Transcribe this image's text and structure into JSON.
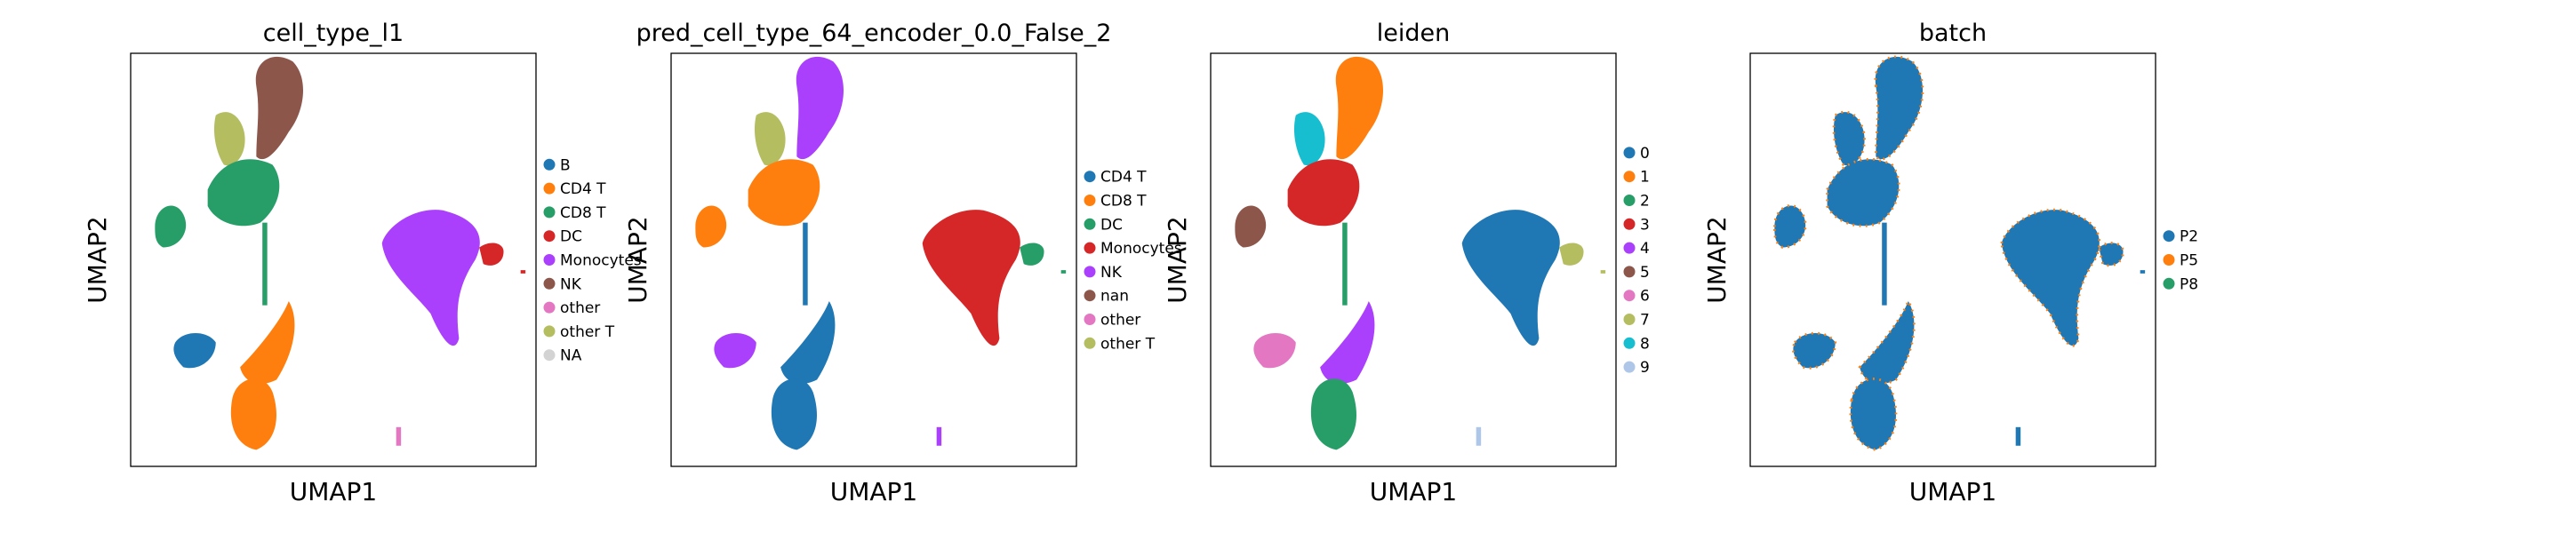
{
  "figure": {
    "panels": [
      {
        "title": "cell_type_l1",
        "xlabel": "UMAP1",
        "ylabel": "UMAP2",
        "legend": [
          {
            "label": "B",
            "color": "#1f77b4"
          },
          {
            "label": "CD4 T",
            "color": "#ff7f0e"
          },
          {
            "label": "CD8 T",
            "color": "#279e68"
          },
          {
            "label": "DC",
            "color": "#d62728"
          },
          {
            "label": "Monocytes",
            "color": "#aa40fc"
          },
          {
            "label": "NK",
            "color": "#8c564b"
          },
          {
            "label": "other",
            "color": "#e377c2"
          },
          {
            "label": "other T",
            "color": "#b5bd61"
          },
          {
            "label": "NA",
            "color": "#d3d3d3"
          }
        ]
      },
      {
        "title": "pred_cell_type_64_encoder_0.0_False_2",
        "xlabel": "UMAP1",
        "ylabel": "UMAP2",
        "legend": [
          {
            "label": "CD4 T",
            "color": "#1f77b4"
          },
          {
            "label": "CD8 T",
            "color": "#ff7f0e"
          },
          {
            "label": "DC",
            "color": "#279e68"
          },
          {
            "label": "Monocytes",
            "color": "#d62728"
          },
          {
            "label": "NK",
            "color": "#aa40fc"
          },
          {
            "label": "nan",
            "color": "#8c564b"
          },
          {
            "label": "other",
            "color": "#e377c2"
          },
          {
            "label": "other T",
            "color": "#b5bd61"
          }
        ]
      },
      {
        "title": "leiden",
        "xlabel": "UMAP1",
        "ylabel": "UMAP2",
        "legend": [
          {
            "label": "0",
            "color": "#1f77b4"
          },
          {
            "label": "1",
            "color": "#ff7f0e"
          },
          {
            "label": "2",
            "color": "#279e68"
          },
          {
            "label": "3",
            "color": "#d62728"
          },
          {
            "label": "4",
            "color": "#aa40fc"
          },
          {
            "label": "5",
            "color": "#8c564b"
          },
          {
            "label": "6",
            "color": "#e377c2"
          },
          {
            "label": "7",
            "color": "#b5bd61"
          },
          {
            "label": "8",
            "color": "#17becf"
          },
          {
            "label": "9",
            "color": "#aec7e8"
          }
        ]
      },
      {
        "title": "batch",
        "xlabel": "UMAP1",
        "ylabel": "UMAP2",
        "legend": [
          {
            "label": "P2",
            "color": "#1f77b4"
          },
          {
            "label": "P5",
            "color": "#ff7f0e"
          },
          {
            "label": "P8",
            "color": "#279e68"
          }
        ]
      }
    ]
  },
  "chart_data": [
    {
      "type": "scatter",
      "title": "cell_type_l1",
      "xlabel": "UMAP1",
      "ylabel": "UMAP2",
      "legend_position": "right",
      "grid": false,
      "series": [
        {
          "name": "B",
          "color": "#1f77b4",
          "region_colors": {
            "left_cluster": "#1f77b4"
          }
        },
        {
          "name": "CD4 T",
          "color": "#ff7f0e"
        },
        {
          "name": "CD8 T",
          "color": "#279e68"
        },
        {
          "name": "DC",
          "color": "#d62728"
        },
        {
          "name": "Monocytes",
          "color": "#aa40fc"
        },
        {
          "name": "NK",
          "color": "#8c564b"
        },
        {
          "name": "other",
          "color": "#e377c2"
        },
        {
          "name": "other T",
          "color": "#b5bd61"
        },
        {
          "name": "NA",
          "color": "#d3d3d3"
        }
      ],
      "clusters": [
        {
          "region": "top",
          "color": "#8c564b"
        },
        {
          "region": "upper_left",
          "color": "#b5bd61"
        },
        {
          "region": "upper_mid",
          "color": "#279e68"
        },
        {
          "region": "far_left",
          "color": "#279e68"
        },
        {
          "region": "spine",
          "color": "#279e68"
        },
        {
          "region": "lower_left",
          "color": "#1f77b4"
        },
        {
          "region": "lower_mid",
          "color": "#ff7f0e"
        },
        {
          "region": "bottom",
          "color": "#ff7f0e"
        },
        {
          "region": "right_big",
          "color": "#aa40fc"
        },
        {
          "region": "right_tail",
          "color": "#d62728"
        },
        {
          "region": "tiny_right",
          "color": "#d62728"
        },
        {
          "region": "tiny_bottom",
          "color": "#e377c2"
        }
      ]
    },
    {
      "type": "scatter",
      "title": "pred_cell_type_64_encoder_0.0_False_2",
      "xlabel": "UMAP1",
      "ylabel": "UMAP2",
      "legend_position": "right",
      "grid": false,
      "clusters": [
        {
          "region": "top",
          "color": "#aa40fc"
        },
        {
          "region": "upper_left",
          "color": "#b5bd61"
        },
        {
          "region": "upper_mid",
          "color": "#ff7f0e"
        },
        {
          "region": "far_left",
          "color": "#ff7f0e"
        },
        {
          "region": "spine",
          "color": "#1f77b4"
        },
        {
          "region": "lower_left",
          "color": "#aa40fc"
        },
        {
          "region": "lower_mid",
          "color": "#1f77b4"
        },
        {
          "region": "bottom",
          "color": "#1f77b4"
        },
        {
          "region": "right_big",
          "color": "#d62728"
        },
        {
          "region": "right_tail",
          "color": "#279e68"
        },
        {
          "region": "tiny_right",
          "color": "#279e68"
        },
        {
          "region": "tiny_bottom",
          "color": "#aa40fc"
        }
      ]
    },
    {
      "type": "scatter",
      "title": "leiden",
      "xlabel": "UMAP1",
      "ylabel": "UMAP2",
      "legend_position": "right",
      "grid": false,
      "clusters": [
        {
          "region": "top",
          "color": "#ff7f0e"
        },
        {
          "region": "upper_left",
          "color": "#17becf"
        },
        {
          "region": "upper_mid",
          "color": "#d62728"
        },
        {
          "region": "far_left",
          "color": "#8c564b"
        },
        {
          "region": "spine",
          "color": "#279e68"
        },
        {
          "region": "lower_left",
          "color": "#e377c2"
        },
        {
          "region": "lower_mid",
          "color": "#aa40fc"
        },
        {
          "region": "bottom",
          "color": "#279e68"
        },
        {
          "region": "right_big",
          "color": "#1f77b4"
        },
        {
          "region": "right_tail",
          "color": "#b5bd61"
        },
        {
          "region": "tiny_right",
          "color": "#b5bd61"
        },
        {
          "region": "tiny_bottom",
          "color": "#aec7e8"
        }
      ]
    },
    {
      "type": "scatter",
      "title": "batch",
      "xlabel": "UMAP1",
      "ylabel": "UMAP2",
      "legend_position": "right",
      "grid": false,
      "clusters": [
        {
          "region": "top",
          "color": "#1f77b4",
          "mix": "#ff7f0e"
        },
        {
          "region": "upper_left",
          "color": "#1f77b4",
          "mix": "#ff7f0e"
        },
        {
          "region": "upper_mid",
          "color": "#1f77b4",
          "mix": "#ff7f0e"
        },
        {
          "region": "far_left",
          "color": "#1f77b4",
          "mix": "#ff7f0e"
        },
        {
          "region": "spine",
          "color": "#1f77b4",
          "mix": "#ff7f0e"
        },
        {
          "region": "lower_left",
          "color": "#1f77b4",
          "mix": "#ff7f0e"
        },
        {
          "region": "lower_mid",
          "color": "#1f77b4",
          "mix": "#ff7f0e"
        },
        {
          "region": "bottom",
          "color": "#1f77b4",
          "mix": "#ff7f0e"
        },
        {
          "region": "right_big",
          "color": "#1f77b4",
          "mix": "#ff7f0e"
        },
        {
          "region": "right_tail",
          "color": "#1f77b4",
          "mix": "#ff7f0e"
        },
        {
          "region": "tiny_right",
          "color": "#1f77b4",
          "mix": "#ff7f0e"
        },
        {
          "region": "tiny_bottom",
          "color": "#1f77b4",
          "mix": "#ff7f0e"
        }
      ]
    }
  ]
}
